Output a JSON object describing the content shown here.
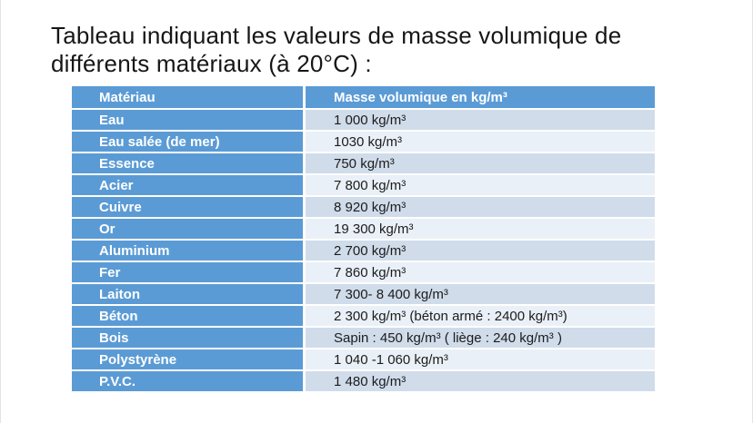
{
  "slide": {
    "title_lines": [
      "Tableau indiquant les valeurs de masse volumique de",
      "différents matériaux (à 20°C) :"
    ]
  },
  "table": {
    "headers": {
      "material": "Matériau",
      "value": "Masse volumique en kg/m³"
    },
    "rows": [
      {
        "material": "Eau",
        "value": "1 000 kg/m³"
      },
      {
        "material": "Eau salée (de mer)",
        "value": "1030 kg/m³"
      },
      {
        "material": "Essence",
        "value": "750 kg/m³"
      },
      {
        "material": "Acier",
        "value": "7 800 kg/m³"
      },
      {
        "material": "Cuivre",
        "value": "8 920 kg/m³"
      },
      {
        "material": "Or",
        "value": "19 300 kg/m³"
      },
      {
        "material": "Aluminium",
        "value": "2 700 kg/m³"
      },
      {
        "material": "Fer",
        "value": "7 860 kg/m³"
      },
      {
        "material": "Laiton",
        "value": "7 300- 8 400 kg/m³"
      },
      {
        "material": "Béton",
        "value": "2 300 kg/m³ (béton armé : 2400 kg/m³)"
      },
      {
        "material": "Bois",
        "value": "Sapin : 450 kg/m³  ( liège : 240 kg/m³ )"
      },
      {
        "material": "Polystyrène",
        "value": "1 040 -1 060 kg/m³"
      },
      {
        "material": "P.V.C.",
        "value": "1 480 kg/m³"
      }
    ]
  },
  "colors": {
    "header_blue": "#5b9bd5",
    "row_band_dark": "#d0dcea",
    "row_band_light": "#eaf0f7",
    "value_text": "#1c1c1c",
    "separator": "#ffffff"
  }
}
